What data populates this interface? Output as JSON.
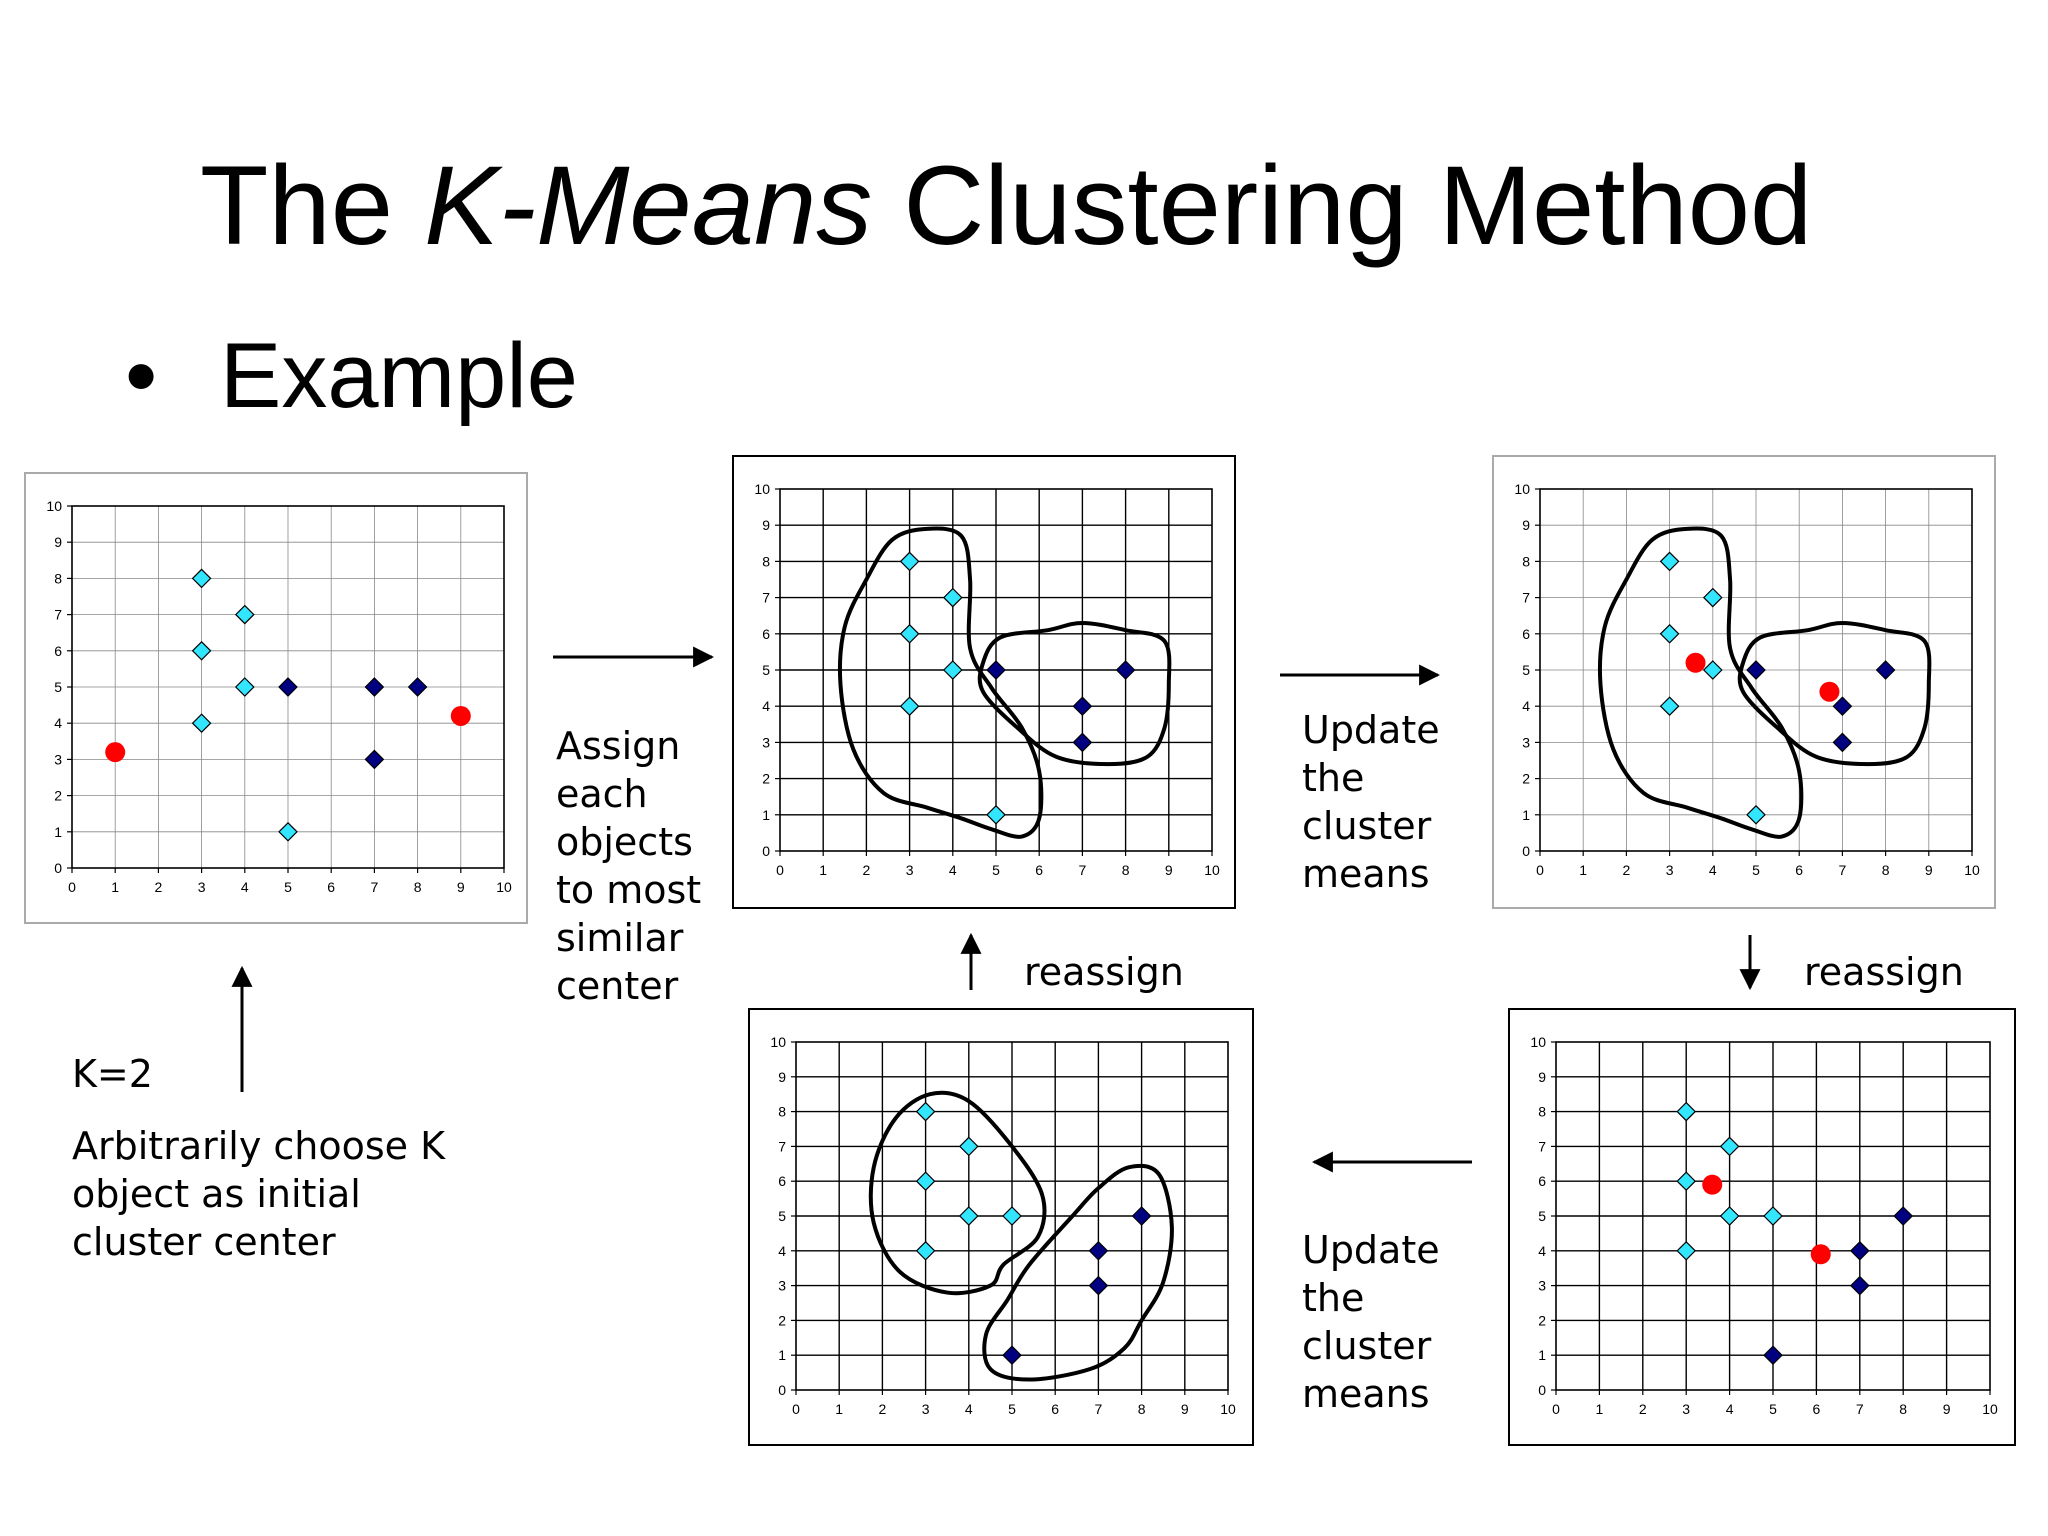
{
  "slide": {
    "title_prefix": "The ",
    "title_italic": "K-Means",
    "title_suffix": " Clustering Method",
    "bullet": "Example",
    "k_label": "K=2",
    "init_lines": [
      "Arbitrarily choose K",
      "object as initial",
      "cluster center"
    ],
    "assign_lines": [
      "Assign",
      "each",
      "objects",
      "to most",
      "similar",
      "center"
    ],
    "update_top_lines": [
      "Update",
      "the",
      "cluster",
      "means"
    ],
    "update_bottom_lines": [
      "Update",
      "the",
      "cluster",
      "means"
    ],
    "reassign_middle": "reassign",
    "reassign_right": "reassign"
  },
  "colors": {
    "cluster1": "#33e6ff",
    "cluster2": "#000080",
    "center": "#ff0000",
    "grid": "#000000",
    "light_grid": "#888888"
  },
  "chart_data": [
    {
      "type": "scatter",
      "panel": "initial",
      "xlim": [
        0,
        10
      ],
      "ylim": [
        0,
        10
      ],
      "xticks": [
        "0",
        "1",
        "2",
        "3",
        "4",
        "5",
        "6",
        "7",
        "8",
        "9",
        "10"
      ],
      "yticks": [
        "0",
        "1",
        "2",
        "3",
        "4",
        "5",
        "6",
        "7",
        "8",
        "9",
        "10"
      ],
      "series": [
        {
          "color": "cluster1",
          "points": [
            [
              3,
              8
            ],
            [
              4,
              7
            ],
            [
              3,
              6
            ],
            [
              4,
              5
            ],
            [
              3,
              4
            ],
            [
              5,
              1
            ]
          ]
        },
        {
          "color": "cluster2",
          "points": [
            [
              5,
              5
            ],
            [
              7,
              5
            ],
            [
              8,
              5
            ],
            [
              7,
              3
            ]
          ]
        }
      ],
      "centers": [
        [
          1,
          3.2
        ],
        [
          9,
          4.2
        ]
      ]
    },
    {
      "type": "scatter",
      "panel": "assigned",
      "xlim": [
        0,
        10
      ],
      "ylim": [
        0,
        10
      ],
      "xticks": [
        "0",
        "1",
        "2",
        "3",
        "4",
        "5",
        "6",
        "7",
        "8",
        "9",
        "10"
      ],
      "yticks": [
        "0",
        "1",
        "2",
        "3",
        "4",
        "5",
        "6",
        "7",
        "8",
        "9",
        "10"
      ],
      "series": [
        {
          "color": "cluster1",
          "points": [
            [
              3,
              8
            ],
            [
              4,
              7
            ],
            [
              3,
              6
            ],
            [
              4,
              5
            ],
            [
              3,
              4
            ],
            [
              5,
              1
            ]
          ]
        },
        {
          "color": "cluster2",
          "points": [
            [
              5,
              5
            ],
            [
              7,
              4
            ],
            [
              8,
              5
            ],
            [
              7,
              3
            ]
          ]
        }
      ],
      "centers": []
    },
    {
      "type": "scatter",
      "panel": "updated-1",
      "xlim": [
        0,
        10
      ],
      "ylim": [
        0,
        10
      ],
      "xticks": [
        "0",
        "1",
        "2",
        "3",
        "4",
        "5",
        "6",
        "7",
        "8",
        "9",
        "10"
      ],
      "yticks": [
        "0",
        "1",
        "2",
        "3",
        "4",
        "5",
        "6",
        "7",
        "8",
        "9",
        "10"
      ],
      "series": [
        {
          "color": "cluster1",
          "points": [
            [
              3,
              8
            ],
            [
              4,
              7
            ],
            [
              3,
              6
            ],
            [
              4,
              5
            ],
            [
              3,
              4
            ],
            [
              5,
              1
            ]
          ]
        },
        {
          "color": "cluster2",
          "points": [
            [
              5,
              5
            ],
            [
              7,
              4
            ],
            [
              8,
              5
            ],
            [
              7,
              3
            ]
          ]
        }
      ],
      "centers": [
        [
          3.6,
          5.2
        ],
        [
          6.7,
          4.4
        ]
      ]
    },
    {
      "type": "scatter",
      "panel": "reassigned",
      "xlim": [
        0,
        10
      ],
      "ylim": [
        0,
        10
      ],
      "xticks": [
        "0",
        "1",
        "2",
        "3",
        "4",
        "5",
        "6",
        "7",
        "8",
        "9",
        "10"
      ],
      "yticks": [
        "0",
        "1",
        "2",
        "3",
        "4",
        "5",
        "6",
        "7",
        "8",
        "9",
        "10"
      ],
      "series": [
        {
          "color": "cluster1",
          "points": [
            [
              3,
              8
            ],
            [
              4,
              7
            ],
            [
              3,
              6
            ],
            [
              4,
              5
            ],
            [
              5,
              5
            ],
            [
              3,
              4
            ]
          ]
        },
        {
          "color": "cluster2",
          "points": [
            [
              7,
              4
            ],
            [
              8,
              5
            ],
            [
              7,
              3
            ],
            [
              5,
              1
            ]
          ]
        }
      ],
      "centers": []
    },
    {
      "type": "scatter",
      "panel": "updated-2",
      "xlim": [
        0,
        10
      ],
      "ylim": [
        0,
        10
      ],
      "xticks": [
        "0",
        "1",
        "2",
        "3",
        "4",
        "5",
        "6",
        "7",
        "8",
        "9",
        "10"
      ],
      "yticks": [
        "0",
        "1",
        "2",
        "3",
        "4",
        "5",
        "6",
        "7",
        "8",
        "9",
        "10"
      ],
      "series": [
        {
          "color": "cluster1",
          "points": [
            [
              3,
              8
            ],
            [
              4,
              7
            ],
            [
              3,
              6
            ],
            [
              4,
              5
            ],
            [
              5,
              5
            ],
            [
              3,
              4
            ]
          ]
        },
        {
          "color": "cluster2",
          "points": [
            [
              7,
              4
            ],
            [
              8,
              5
            ],
            [
              7,
              3
            ],
            [
              5,
              1
            ]
          ]
        }
      ],
      "centers": [
        [
          3.6,
          5.9
        ],
        [
          6.1,
          3.9
        ]
      ]
    }
  ]
}
